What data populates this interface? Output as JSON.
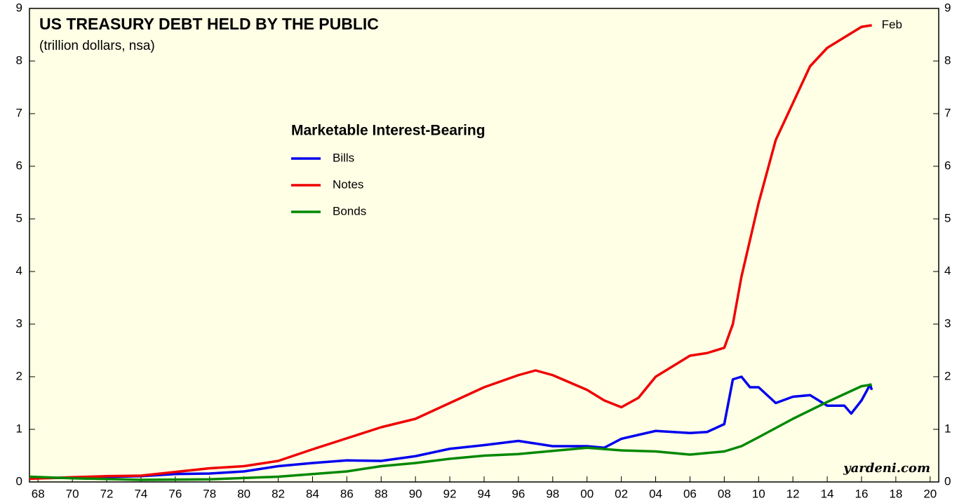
{
  "chart_data": {
    "type": "line",
    "title": "US TREASURY DEBT HELD BY THE PUBLIC",
    "subtitle": "(trillion dollars, nsa)",
    "legend_title": "Marketable Interest-Bearing",
    "annotation": "Feb",
    "source": "yardeni.com",
    "xlim": [
      1967.5,
      2020.5
    ],
    "ylim": [
      0,
      9
    ],
    "yticks": [
      0,
      1,
      2,
      3,
      4,
      5,
      6,
      7,
      8,
      9
    ],
    "xticks": [
      {
        "value": 1968,
        "label": "68"
      },
      {
        "value": 1970,
        "label": "70"
      },
      {
        "value": 1972,
        "label": "72"
      },
      {
        "value": 1974,
        "label": "74"
      },
      {
        "value": 1976,
        "label": "76"
      },
      {
        "value": 1978,
        "label": "78"
      },
      {
        "value": 1980,
        "label": "80"
      },
      {
        "value": 1982,
        "label": "82"
      },
      {
        "value": 1984,
        "label": "84"
      },
      {
        "value": 1986,
        "label": "86"
      },
      {
        "value": 1988,
        "label": "88"
      },
      {
        "value": 1990,
        "label": "90"
      },
      {
        "value": 1992,
        "label": "92"
      },
      {
        "value": 1994,
        "label": "94"
      },
      {
        "value": 1996,
        "label": "96"
      },
      {
        "value": 1998,
        "label": "98"
      },
      {
        "value": 2000,
        "label": "00"
      },
      {
        "value": 2002,
        "label": "02"
      },
      {
        "value": 2004,
        "label": "04"
      },
      {
        "value": 2006,
        "label": "06"
      },
      {
        "value": 2008,
        "label": "08"
      },
      {
        "value": 2010,
        "label": "10"
      },
      {
        "value": 2012,
        "label": "12"
      },
      {
        "value": 2014,
        "label": "14"
      },
      {
        "value": 2016,
        "label": "16"
      },
      {
        "value": 2018,
        "label": "18"
      },
      {
        "value": 2020,
        "label": "20"
      }
    ],
    "series": [
      {
        "name": "Bills",
        "color": "#0000ee",
        "x": [
          1967.5,
          1970,
          1974,
          1976,
          1978,
          1980,
          1982,
          1984,
          1986,
          1988,
          1990,
          1992,
          1994,
          1996,
          1998,
          2000,
          2001,
          2002,
          2004,
          2006,
          2007,
          2008,
          2008.5,
          2009,
          2009.5,
          2010,
          2011,
          2012,
          2013,
          2014,
          2015,
          2015.4,
          2016,
          2016.5,
          2016.6
        ],
        "values": [
          0.07,
          0.08,
          0.11,
          0.15,
          0.16,
          0.2,
          0.3,
          0.36,
          0.41,
          0.4,
          0.49,
          0.63,
          0.7,
          0.78,
          0.68,
          0.68,
          0.65,
          0.82,
          0.97,
          0.93,
          0.95,
          1.1,
          1.95,
          2.0,
          1.8,
          1.8,
          1.5,
          1.62,
          1.65,
          1.45,
          1.45,
          1.3,
          1.55,
          1.85,
          1.75
        ]
      },
      {
        "name": "Notes",
        "color": "#ee0000",
        "x": [
          1967.5,
          1970,
          1972,
          1974,
          1976,
          1978,
          1980,
          1982,
          1984,
          1986,
          1988,
          1990,
          1992,
          1994,
          1996,
          1997,
          1998,
          2000,
          2001,
          2002,
          2003,
          2004,
          2006,
          2007,
          2008,
          2008.5,
          2009,
          2010,
          2011,
          2012,
          2013,
          2014,
          2015,
          2016,
          2016.6
        ],
        "values": [
          0.06,
          0.09,
          0.11,
          0.12,
          0.19,
          0.26,
          0.3,
          0.4,
          0.62,
          0.83,
          1.04,
          1.2,
          1.5,
          1.8,
          2.03,
          2.12,
          2.03,
          1.75,
          1.55,
          1.42,
          1.6,
          2.0,
          2.4,
          2.45,
          2.55,
          3.0,
          3.9,
          5.3,
          6.5,
          7.2,
          7.9,
          8.25,
          8.45,
          8.65,
          8.68
        ]
      },
      {
        "name": "Bonds",
        "color": "#008800",
        "x": [
          1967.5,
          1970,
          1974,
          1978,
          1982,
          1986,
          1988,
          1990,
          1992,
          1994,
          1996,
          1998,
          2000,
          2002,
          2004,
          2006,
          2008,
          2009,
          2010,
          2012,
          2014,
          2016,
          2016.6
        ],
        "values": [
          0.1,
          0.07,
          0.04,
          0.05,
          0.1,
          0.2,
          0.3,
          0.36,
          0.44,
          0.5,
          0.53,
          0.59,
          0.65,
          0.6,
          0.58,
          0.52,
          0.58,
          0.68,
          0.85,
          1.2,
          1.52,
          1.82,
          1.85
        ]
      }
    ]
  }
}
